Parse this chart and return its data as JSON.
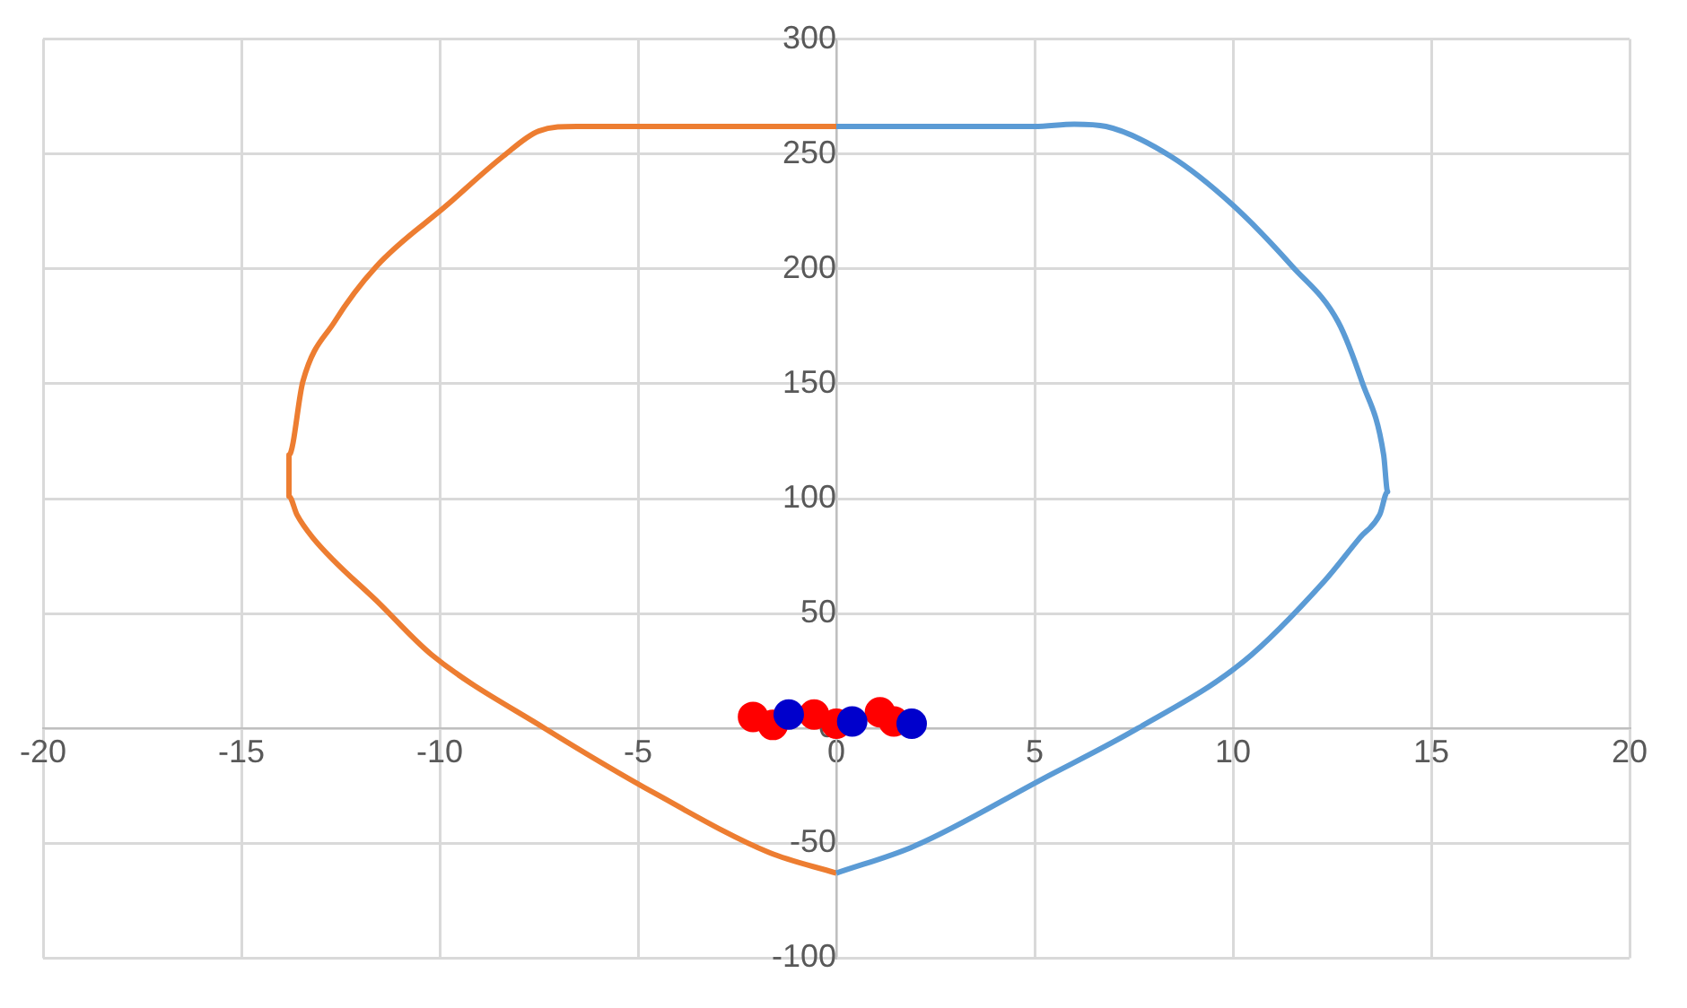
{
  "chart_data": {
    "type": "scatter",
    "xlim": [
      -20,
      20
    ],
    "ylim": [
      -100,
      300
    ],
    "xticks": [
      -20,
      -15,
      -10,
      -5,
      0,
      5,
      10,
      15,
      20
    ],
    "yticks": [
      -100,
      -50,
      0,
      50,
      100,
      150,
      200,
      250,
      300
    ],
    "grid": true,
    "legend": false,
    "series": [
      {
        "type": "line",
        "color": "#5b9bd5",
        "marker": "none",
        "x": [
          0,
          5,
          6,
          6.8,
          8.43,
          9.98,
          11.5,
          12.65,
          13.25,
          13.8,
          13.9,
          13.7,
          13.2,
          12.3,
          10.26,
          7.6,
          5.2,
          2.0,
          0
        ],
        "values": [
          262,
          262,
          263,
          262,
          249,
          228,
          201,
          177,
          151,
          119,
          103,
          93,
          83,
          64,
          29,
          0,
          -22,
          -51,
          -63
        ]
      },
      {
        "type": "line",
        "color": "#ed7d31",
        "marker": "none",
        "x": [
          0,
          -5,
          -6.55,
          -7.5,
          -8.4,
          -9.8,
          -11.6,
          -12.65,
          -13.45,
          -13.8,
          -13.8,
          -13.6,
          -13.2,
          -11.5,
          -10.2,
          -7.35,
          -4.5,
          -1.7,
          0
        ],
        "values": [
          262,
          262,
          262,
          260,
          249,
          228,
          201,
          177,
          151,
          119,
          101,
          93,
          83,
          54,
          32,
          0,
          -29,
          -54,
          -63
        ]
      },
      {
        "type": "scatter",
        "color": "#0000cc",
        "marker": "circle",
        "x": [
          -1.2,
          0.4,
          1.9
        ],
        "values": [
          6,
          3,
          2
        ]
      },
      {
        "type": "scatter",
        "color": "#ff0000",
        "marker": "circle",
        "x": [
          -2.1,
          -1.6,
          -0.56,
          0,
          1.1,
          1.45
        ],
        "values": [
          5,
          1.5,
          6,
          2,
          7,
          3
        ]
      }
    ]
  }
}
